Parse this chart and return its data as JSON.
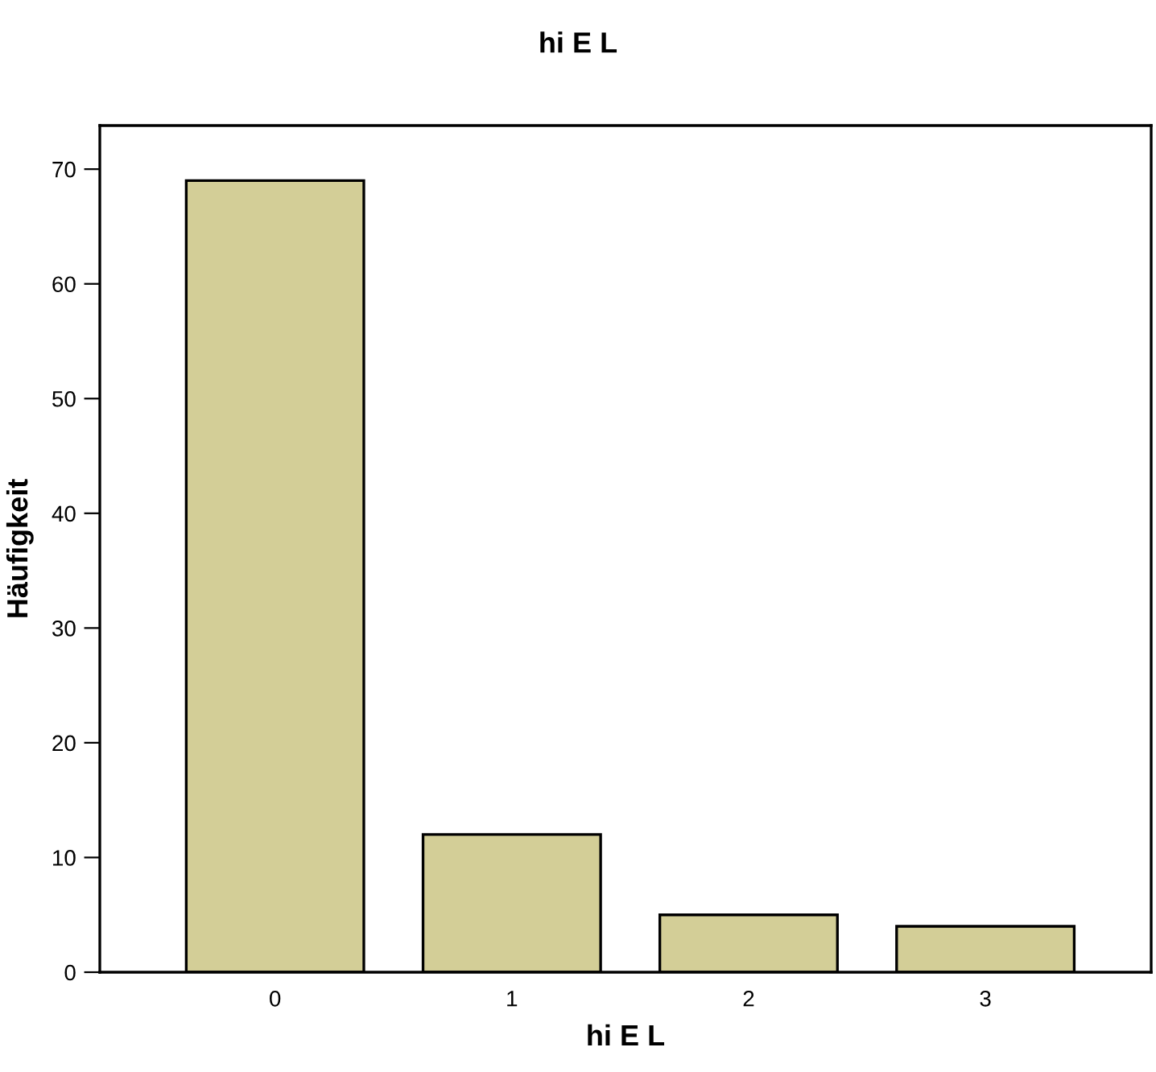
{
  "chart_data": {
    "type": "bar",
    "title": "hi E L",
    "xlabel": "hi E L",
    "ylabel": "Häufigkeit",
    "categories": [
      "0",
      "1",
      "2",
      "3"
    ],
    "values": [
      69,
      12,
      5,
      4
    ],
    "color": "#d3ce97",
    "ylim": [
      0,
      73.8
    ],
    "yticks": [
      0,
      10,
      20,
      30,
      40,
      50,
      60,
      70
    ],
    "grid": false,
    "legend": false
  }
}
